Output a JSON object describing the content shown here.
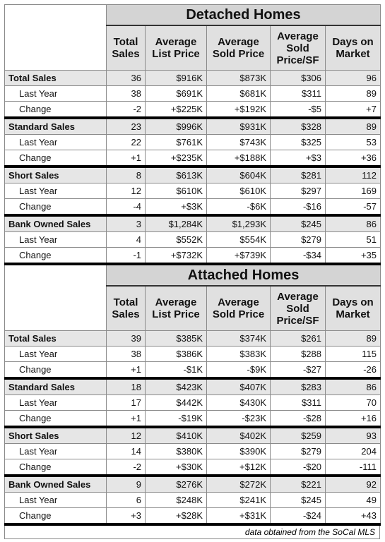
{
  "sections": [
    {
      "title": "Detached Homes",
      "headers": [
        "Total Sales",
        "Average List Price",
        "Average Sold Price",
        "Average Sold Price/SF",
        "Days on Market"
      ],
      "groups": [
        {
          "rows": [
            [
              "Total Sales",
              "36",
              "$916K",
              "$873K",
              "$306",
              "96"
            ],
            [
              "Last Year",
              "38",
              "$691K",
              "$681K",
              "$311",
              "89"
            ],
            [
              "Change",
              "-2",
              "+$225K",
              "+$192K",
              "-$5",
              "+7"
            ]
          ]
        },
        {
          "rows": [
            [
              "Standard Sales",
              "23",
              "$996K",
              "$931K",
              "$328",
              "89"
            ],
            [
              "Last Year",
              "22",
              "$761K",
              "$743K",
              "$325",
              "53"
            ],
            [
              "Change",
              "+1",
              "+$235K",
              "+$188K",
              "+$3",
              "+36"
            ]
          ]
        },
        {
          "rows": [
            [
              "Short Sales",
              "8",
              "$613K",
              "$604K",
              "$281",
              "112"
            ],
            [
              "Last Year",
              "12",
              "$610K",
              "$610K",
              "$297",
              "169"
            ],
            [
              "Change",
              "-4",
              "+$3K",
              "-$6K",
              "-$16",
              "-57"
            ]
          ]
        },
        {
          "rows": [
            [
              "Bank Owned Sales",
              "3",
              "$1,284K",
              "$1,293K",
              "$245",
              "86"
            ],
            [
              "Last Year",
              "4",
              "$552K",
              "$554K",
              "$279",
              "51"
            ],
            [
              "Change",
              "-1",
              "+$732K",
              "+$739K",
              "-$34",
              "+35"
            ]
          ]
        }
      ]
    },
    {
      "title": "Attached Homes",
      "headers": [
        "Total Sales",
        "Average List Price",
        "Average Sold Price",
        "Average Sold Price/SF",
        "Days on Market"
      ],
      "groups": [
        {
          "rows": [
            [
              "Total Sales",
              "39",
              "$385K",
              "$374K",
              "$261",
              "89"
            ],
            [
              "Last Year",
              "38",
              "$386K",
              "$383K",
              "$288",
              "115"
            ],
            [
              "Change",
              "+1",
              "-$1K",
              "-$9K",
              "-$27",
              "-26"
            ]
          ]
        },
        {
          "rows": [
            [
              "Standard Sales",
              "18",
              "$423K",
              "$407K",
              "$283",
              "86"
            ],
            [
              "Last Year",
              "17",
              "$442K",
              "$430K",
              "$311",
              "70"
            ],
            [
              "Change",
              "+1",
              "-$19K",
              "-$23K",
              "-$28",
              "+16"
            ]
          ]
        },
        {
          "rows": [
            [
              "Short Sales",
              "12",
              "$410K",
              "$402K",
              "$259",
              "93"
            ],
            [
              "Last Year",
              "14",
              "$380K",
              "$390K",
              "$279",
              "204"
            ],
            [
              "Change",
              "-2",
              "+$30K",
              "+$12K",
              "-$20",
              "-111"
            ]
          ]
        },
        {
          "rows": [
            [
              "Bank Owned Sales",
              "9",
              "$276K",
              "$272K",
              "$221",
              "92"
            ],
            [
              "Last Year",
              "6",
              "$248K",
              "$241K",
              "$245",
              "49"
            ],
            [
              "Change",
              "+3",
              "+$28K",
              "+$31K",
              "-$24",
              "+43"
            ]
          ]
        }
      ]
    }
  ],
  "note": "data obtained from the SoCal MLS"
}
